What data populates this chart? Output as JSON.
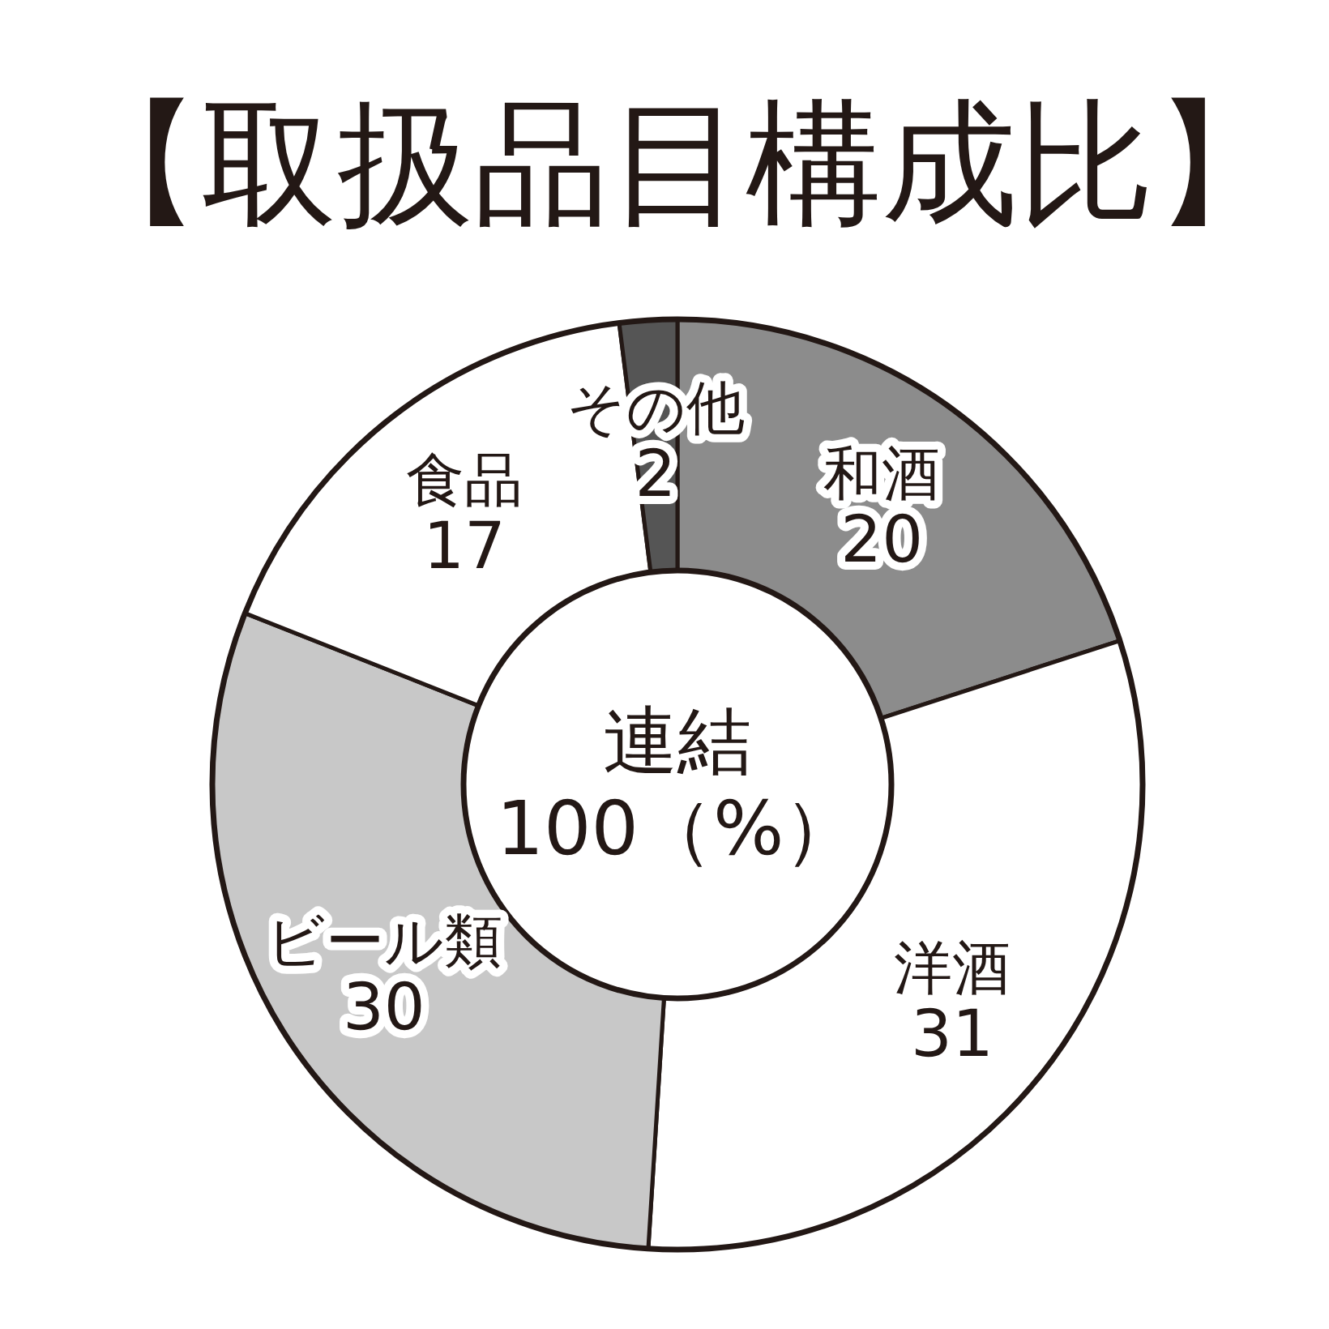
{
  "chart_data": {
    "type": "donut",
    "title": "【取扱品目構成比】",
    "categories": [
      "和酒",
      "洋酒",
      "ビール類",
      "食品",
      "その他"
    ],
    "values": [
      20,
      31,
      30,
      17,
      2
    ],
    "colors": [
      "#8c8c8c",
      "#ffffff",
      "#c8c8c8",
      "#ffffff",
      "#555555"
    ],
    "data_labels": true,
    "annotations": [
      "連結",
      "100（%）"
    ]
  }
}
